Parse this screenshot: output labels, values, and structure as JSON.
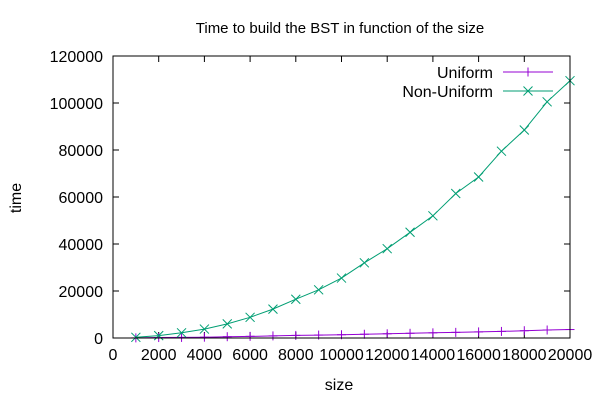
{
  "chart_data": {
    "type": "line",
    "title": "Time to build the BST in function of the size",
    "xlabel": "size",
    "ylabel": "time",
    "xlim": [
      0,
      20000
    ],
    "ylim": [
      0,
      120000
    ],
    "x_ticks": [
      0,
      2000,
      4000,
      6000,
      8000,
      10000,
      12000,
      14000,
      16000,
      18000,
      20000
    ],
    "y_ticks": [
      0,
      20000,
      40000,
      60000,
      80000,
      100000,
      120000
    ],
    "grid": false,
    "legend_position": "top-right",
    "x": [
      1000,
      2000,
      3000,
      4000,
      5000,
      6000,
      7000,
      8000,
      9000,
      10000,
      11000,
      12000,
      13000,
      14000,
      15000,
      16000,
      17000,
      18000,
      19000,
      20000
    ],
    "series": [
      {
        "name": "Uniform",
        "color": "#9400d3",
        "marker": "plus",
        "values": [
          50,
          200,
          250,
          350,
          550,
          700,
          900,
          1100,
          1250,
          1400,
          1600,
          1800,
          2000,
          2200,
          2400,
          2600,
          2800,
          3100,
          3400,
          3600
        ]
      },
      {
        "name": "Non-Uniform",
        "color": "#009e73",
        "marker": "cross",
        "values": [
          300,
          1000,
          2200,
          3800,
          6000,
          8800,
          12300,
          16500,
          20500,
          25500,
          32000,
          38000,
          45000,
          52000,
          61500,
          68500,
          79500,
          88500,
          100500,
          109500
        ]
      }
    ]
  }
}
